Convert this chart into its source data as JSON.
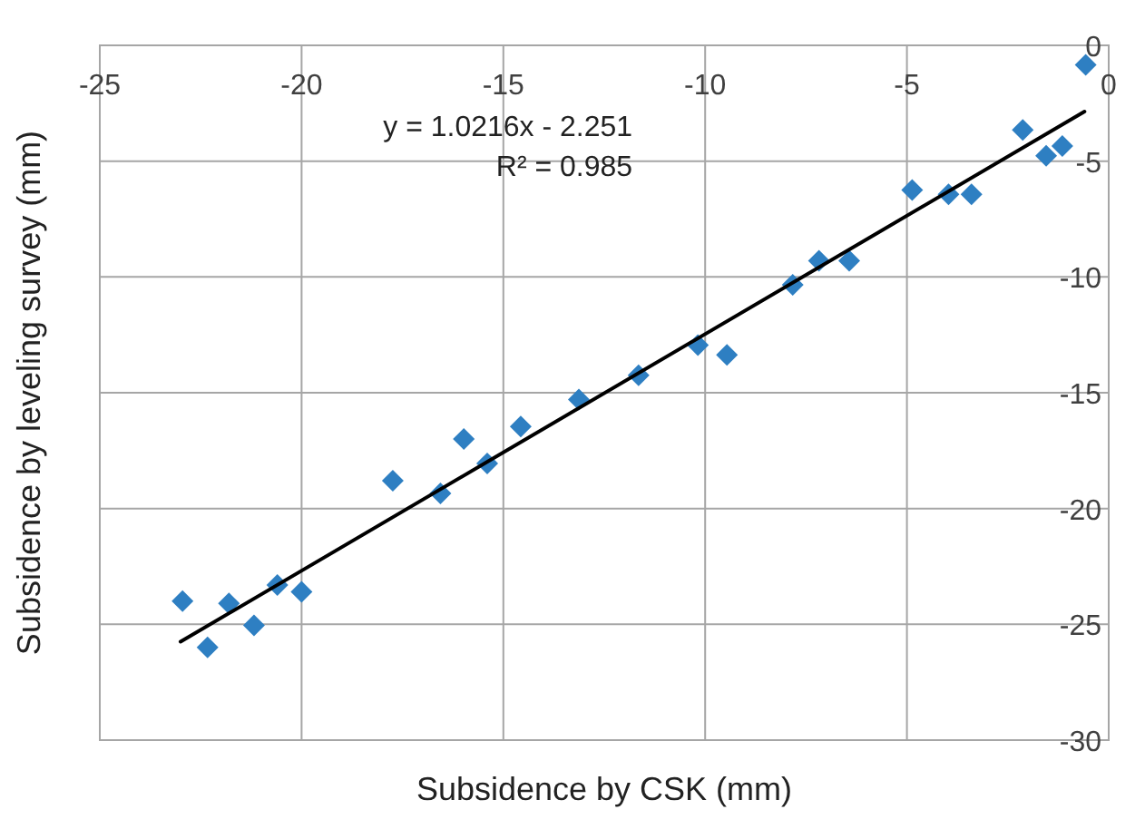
{
  "chart_data": {
    "type": "scatter",
    "xlabel": "Subsidence by CSK (mm)",
    "ylabel": "Subsidence by leveling survey (mm)",
    "xlim": [
      -25,
      0
    ],
    "xticks": [
      -25,
      -20,
      -15,
      -10,
      -5,
      0
    ],
    "ylim": [
      -30,
      0
    ],
    "yticks": [
      -30,
      -25,
      -20,
      -15,
      -10,
      -5,
      0
    ],
    "grid": true,
    "marker": "diamond",
    "annotations": [
      "y = 1.0216x - 2.251",
      "R² = 0.985"
    ],
    "series": [
      {
        "color": "#2e7fc2",
        "x": [
          -22.95,
          -22.33,
          -21.8,
          -21.18,
          -20.6,
          -20.0,
          -17.74,
          -16.56,
          -15.98,
          -15.4,
          -14.57,
          -13.13,
          -11.65,
          -10.18,
          -9.46,
          -7.83,
          -7.18,
          -6.43,
          -4.87,
          -3.97,
          -3.4,
          -2.13,
          -1.55,
          -1.15,
          -0.57
        ],
        "values": [
          -24.0,
          -26.0,
          -24.1,
          -25.05,
          -23.3,
          -23.6,
          -18.8,
          -19.35,
          -17.0,
          -18.05,
          -16.46,
          -15.29,
          -14.25,
          -12.94,
          -13.36,
          -10.34,
          -9.3,
          -9.3,
          -6.25,
          -6.43,
          -6.43,
          -3.65,
          -4.77,
          -4.35,
          -0.84
        ]
      },
      {
        "type": "line",
        "color": "#000000",
        "marker": "none",
        "x": [
          -23,
          -0.6
        ],
        "values": [
          -25.75,
          -2.86
        ]
      }
    ]
  }
}
